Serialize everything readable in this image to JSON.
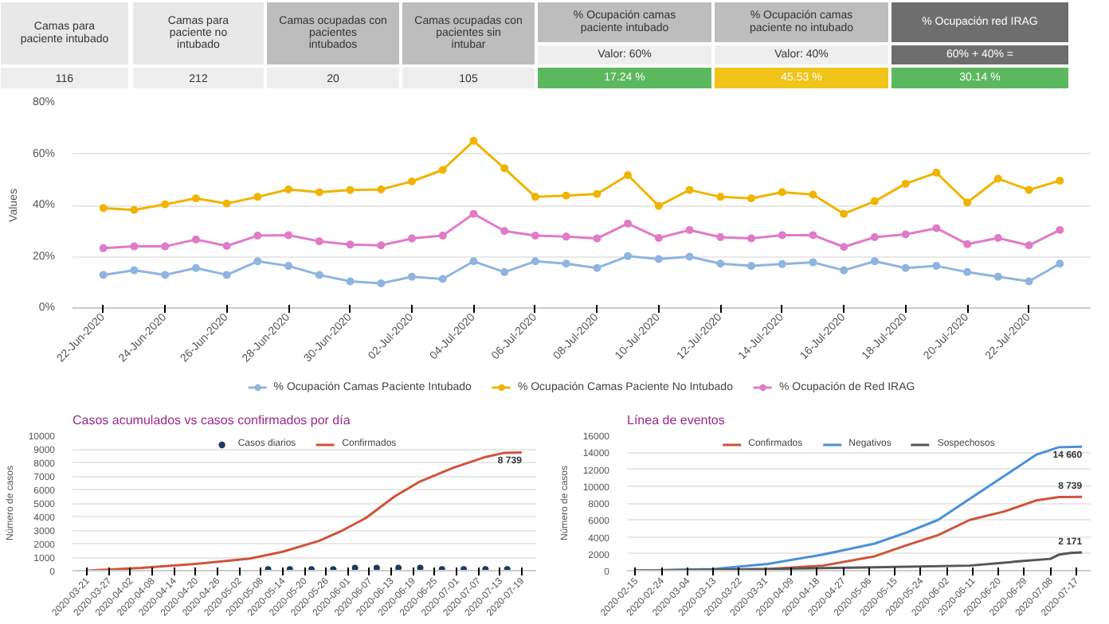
{
  "chart_data": [
    {
      "type": "other",
      "categories": [
        "Camas para paciente intubado",
        "Camas para paciente no intubado",
        "Camas ocupadas con pacientes intubados",
        "Camas ocupadas con pacientes sin intubar",
        "% Ocupación camas paciente intubado",
        "% Ocupación camas paciente no intubado",
        "% Ocupación red IRAG"
      ],
      "annotations": [
        "Valor: 60%",
        "Valor: 40%",
        "60% + 40% ="
      ],
      "value_labels": [
        "116",
        "212",
        "20",
        "105",
        "17.24 %",
        "45.53 %",
        "30.14 %"
      ]
    },
    {
      "type": "line",
      "ylabel": "Values",
      "grid": "y",
      "legend": "bottom",
      "marker": "circle",
      "x": [
        "2020-06-22",
        "2020-06-23",
        "2020-06-24",
        "2020-06-25",
        "2020-06-26",
        "2020-06-27",
        "2020-06-28",
        "2020-06-29",
        "2020-06-30",
        "2020-07-01",
        "2020-07-02",
        "2020-07-03",
        "2020-07-04",
        "2020-07-05",
        "2020-07-06",
        "2020-07-07",
        "2020-07-08",
        "2020-07-09",
        "2020-07-10",
        "2020-07-11",
        "2020-07-12",
        "2020-07-13",
        "2020-07-14",
        "2020-07-15",
        "2020-07-16",
        "2020-07-17",
        "2020-07-18",
        "2020-07-19",
        "2020-07-20",
        "2020-07-21",
        "2020-07-22",
        "2020-07-23"
      ],
      "xlim": [
        "2020-06-21",
        "2020-07-24"
      ],
      "xticks": [
        {
          "value": "2020-06-22",
          "label": "22-Jun-2020"
        },
        {
          "value": "2020-06-24",
          "label": "24-Jun-2020"
        },
        {
          "value": "2020-06-26",
          "label": "26-Jun-2020"
        },
        {
          "value": "2020-06-28",
          "label": "28-Jun-2020"
        },
        {
          "value": "2020-06-30",
          "label": "30-Jun-2020"
        },
        {
          "value": "2020-07-02",
          "label": "02-Jul-2020"
        },
        {
          "value": "2020-07-04",
          "label": "04-Jul-2020"
        },
        {
          "value": "2020-07-06",
          "label": "06-Jul-2020"
        },
        {
          "value": "2020-07-08",
          "label": "08-Jul-2020"
        },
        {
          "value": "2020-07-10",
          "label": "10-Jul-2020"
        },
        {
          "value": "2020-07-12",
          "label": "12-Jul-2020"
        },
        {
          "value": "2020-07-14",
          "label": "14-Jul-2020"
        },
        {
          "value": "2020-07-16",
          "label": "16-Jul-2020"
        },
        {
          "value": "2020-07-18",
          "label": "18-Jul-2020"
        },
        {
          "value": "2020-07-20",
          "label": "20-Jul-2020"
        },
        {
          "value": "2020-07-22",
          "label": "22-Jul-2020"
        }
      ],
      "ylim": [
        0,
        80
      ],
      "yticks": [
        {
          "value": 0,
          "label": "0%"
        },
        {
          "value": 20,
          "label": "20%"
        },
        {
          "value": 40,
          "label": "40%"
        },
        {
          "value": 60,
          "label": "60%"
        },
        {
          "value": 80,
          "label": "80%"
        }
      ],
      "series": [
        {
          "name": "% Ocupación Camas Paciente Intubado",
          "color": "#8fb4e0",
          "values": [
            12.9,
            14.7,
            12.9,
            15.6,
            12.9,
            18.2,
            16.4,
            12.9,
            10.4,
            9.6,
            12.2,
            11.3,
            18.2,
            14.0,
            18.2,
            17.3,
            15.6,
            20.2,
            19.1,
            20.0,
            17.3,
            16.4,
            17.1,
            17.8,
            14.7,
            18.2,
            15.6,
            16.4,
            14.0,
            12.2,
            10.4,
            17.3
          ]
        },
        {
          "name": "% Ocupación Camas Paciente No Intubado",
          "color": "#f0b400",
          "values": [
            38.9,
            38.2,
            40.4,
            42.7,
            40.7,
            43.3,
            46.2,
            45.1,
            46.0,
            46.2,
            49.3,
            53.8,
            65.1,
            54.4,
            43.3,
            43.8,
            44.4,
            51.8,
            39.8,
            46.0,
            43.3,
            42.7,
            45.1,
            44.2,
            36.7,
            41.6,
            48.4,
            52.7,
            41.1,
            50.4,
            46.0,
            49.6
          ]
        },
        {
          "name": "% Ocupación de Red IRAG",
          "color": "#e07bc8",
          "values": [
            23.3,
            24.0,
            24.0,
            26.7,
            24.2,
            28.2,
            28.4,
            26.0,
            24.7,
            24.4,
            27.1,
            28.2,
            36.7,
            30.0,
            28.2,
            27.8,
            27.1,
            32.9,
            27.3,
            30.4,
            27.6,
            27.1,
            28.4,
            28.4,
            23.8,
            27.6,
            28.7,
            31.1,
            24.9,
            27.3,
            24.4,
            30.4
          ]
        }
      ]
    },
    {
      "type": "line",
      "title": "Casos acumulados vs casos confirmados por día",
      "ylabel": "Número de casos",
      "grid": "y",
      "legend": "top",
      "xlim": [
        "2020-03-17",
        "2020-07-23"
      ],
      "xticks": [
        "2020-03-21",
        "2020-03-27",
        "2020-04-02",
        "2020-04-08",
        "2020-04-14",
        "2020-04-20",
        "2020-04-26",
        "2020-05-02",
        "2020-05-08",
        "2020-05-14",
        "2020-05-20",
        "2020-05-26",
        "2020-06-01",
        "2020-06-07",
        "2020-06-13",
        "2020-06-19",
        "2020-06-25",
        "2020-07-01",
        "2020-07-07",
        "2020-07-13",
        "2020-07-19"
      ],
      "ylim": [
        0,
        10000
      ],
      "yticks": [
        0,
        1000,
        2000,
        3000,
        4000,
        5000,
        6000,
        7000,
        8000,
        9000,
        10000
      ],
      "annotations": [
        {
          "text": "8 739",
          "x": "2020-07-19",
          "y": 8739
        }
      ],
      "series": [
        {
          "name": "Casos diarios",
          "type": "scatter",
          "color": "#1f3a5f",
          "x": [
            "2020-05-10",
            "2020-05-16",
            "2020-05-22",
            "2020-05-28",
            "2020-06-03",
            "2020-06-09",
            "2020-06-15",
            "2020-06-21",
            "2020-06-27",
            "2020-07-03",
            "2020-07-09",
            "2020-07-15"
          ],
          "values": [
            100,
            100,
            100,
            100,
            200,
            200,
            200,
            200,
            100,
            100,
            100,
            100
          ]
        },
        {
          "name": "Confirmados",
          "color": "#d0533a",
          "x": [
            "2020-03-21",
            "2020-04-05",
            "2020-04-20",
            "2020-05-05",
            "2020-05-14",
            "2020-05-24",
            "2020-05-30",
            "2020-06-06",
            "2020-06-14",
            "2020-06-21",
            "2020-06-30",
            "2020-07-09",
            "2020-07-14",
            "2020-07-19"
          ],
          "values": [
            0,
            200,
            500,
            900,
            1400,
            2200,
            2900,
            3900,
            5500,
            6600,
            7600,
            8400,
            8700,
            8739
          ]
        }
      ]
    },
    {
      "type": "line",
      "title": "Línea de eventos",
      "ylabel": "Número de casos",
      "grid": "y",
      "legend": "top",
      "xlim": [
        "2020-02-12",
        "2020-07-22"
      ],
      "xticks": [
        "2020-02-15",
        "2020-02-24",
        "2020-03-04",
        "2020-03-13",
        "2020-03-22",
        "2020-03-31",
        "2020-04-09",
        "2020-04-18",
        "2020-04-27",
        "2020-05-06",
        "2020-05-15",
        "2020-05-24",
        "2020-06-02",
        "2020-06-11",
        "2020-06-20",
        "2020-06-29",
        "2020-07-08",
        "2020-07-17"
      ],
      "ylim": [
        0,
        16000
      ],
      "yticks": [
        0,
        2000,
        4000,
        6000,
        8000,
        10000,
        12000,
        14000,
        16000
      ],
      "annotations": [
        {
          "text": "14 660",
          "x": "2020-07-19",
          "y": 14660
        },
        {
          "text": "8 739",
          "x": "2020-07-19",
          "y": 8739
        },
        {
          "text": "2 171",
          "x": "2020-07-19",
          "y": 2171
        }
      ],
      "series": [
        {
          "name": "Confirmados",
          "color": "#d0533a",
          "x": [
            "2020-02-15",
            "2020-04-01",
            "2020-04-20",
            "2020-05-08",
            "2020-05-19",
            "2020-05-30",
            "2020-06-10",
            "2020-06-22",
            "2020-07-03",
            "2020-07-11",
            "2020-07-19"
          ],
          "values": [
            0,
            200,
            600,
            1700,
            3000,
            4200,
            6000,
            7000,
            8300,
            8700,
            8739
          ]
        },
        {
          "name": "Negativos",
          "color": "#4a90d9",
          "x": [
            "2020-02-15",
            "2020-03-13",
            "2020-04-01",
            "2020-04-20",
            "2020-05-08",
            "2020-05-19",
            "2020-05-30",
            "2020-06-10",
            "2020-06-22",
            "2020-07-03",
            "2020-07-11",
            "2020-07-19"
          ],
          "values": [
            0,
            200,
            800,
            1900,
            3200,
            4500,
            6000,
            8500,
            11200,
            13700,
            14600,
            14660
          ]
        },
        {
          "name": "Sospechosos",
          "color": "#555555",
          "x": [
            "2020-02-15",
            "2020-04-01",
            "2020-05-08",
            "2020-06-10",
            "2020-06-27",
            "2020-07-08",
            "2020-07-11",
            "2020-07-15",
            "2020-07-19"
          ],
          "values": [
            0,
            200,
            400,
            600,
            1100,
            1400,
            1900,
            2100,
            2171
          ]
        }
      ]
    }
  ]
}
